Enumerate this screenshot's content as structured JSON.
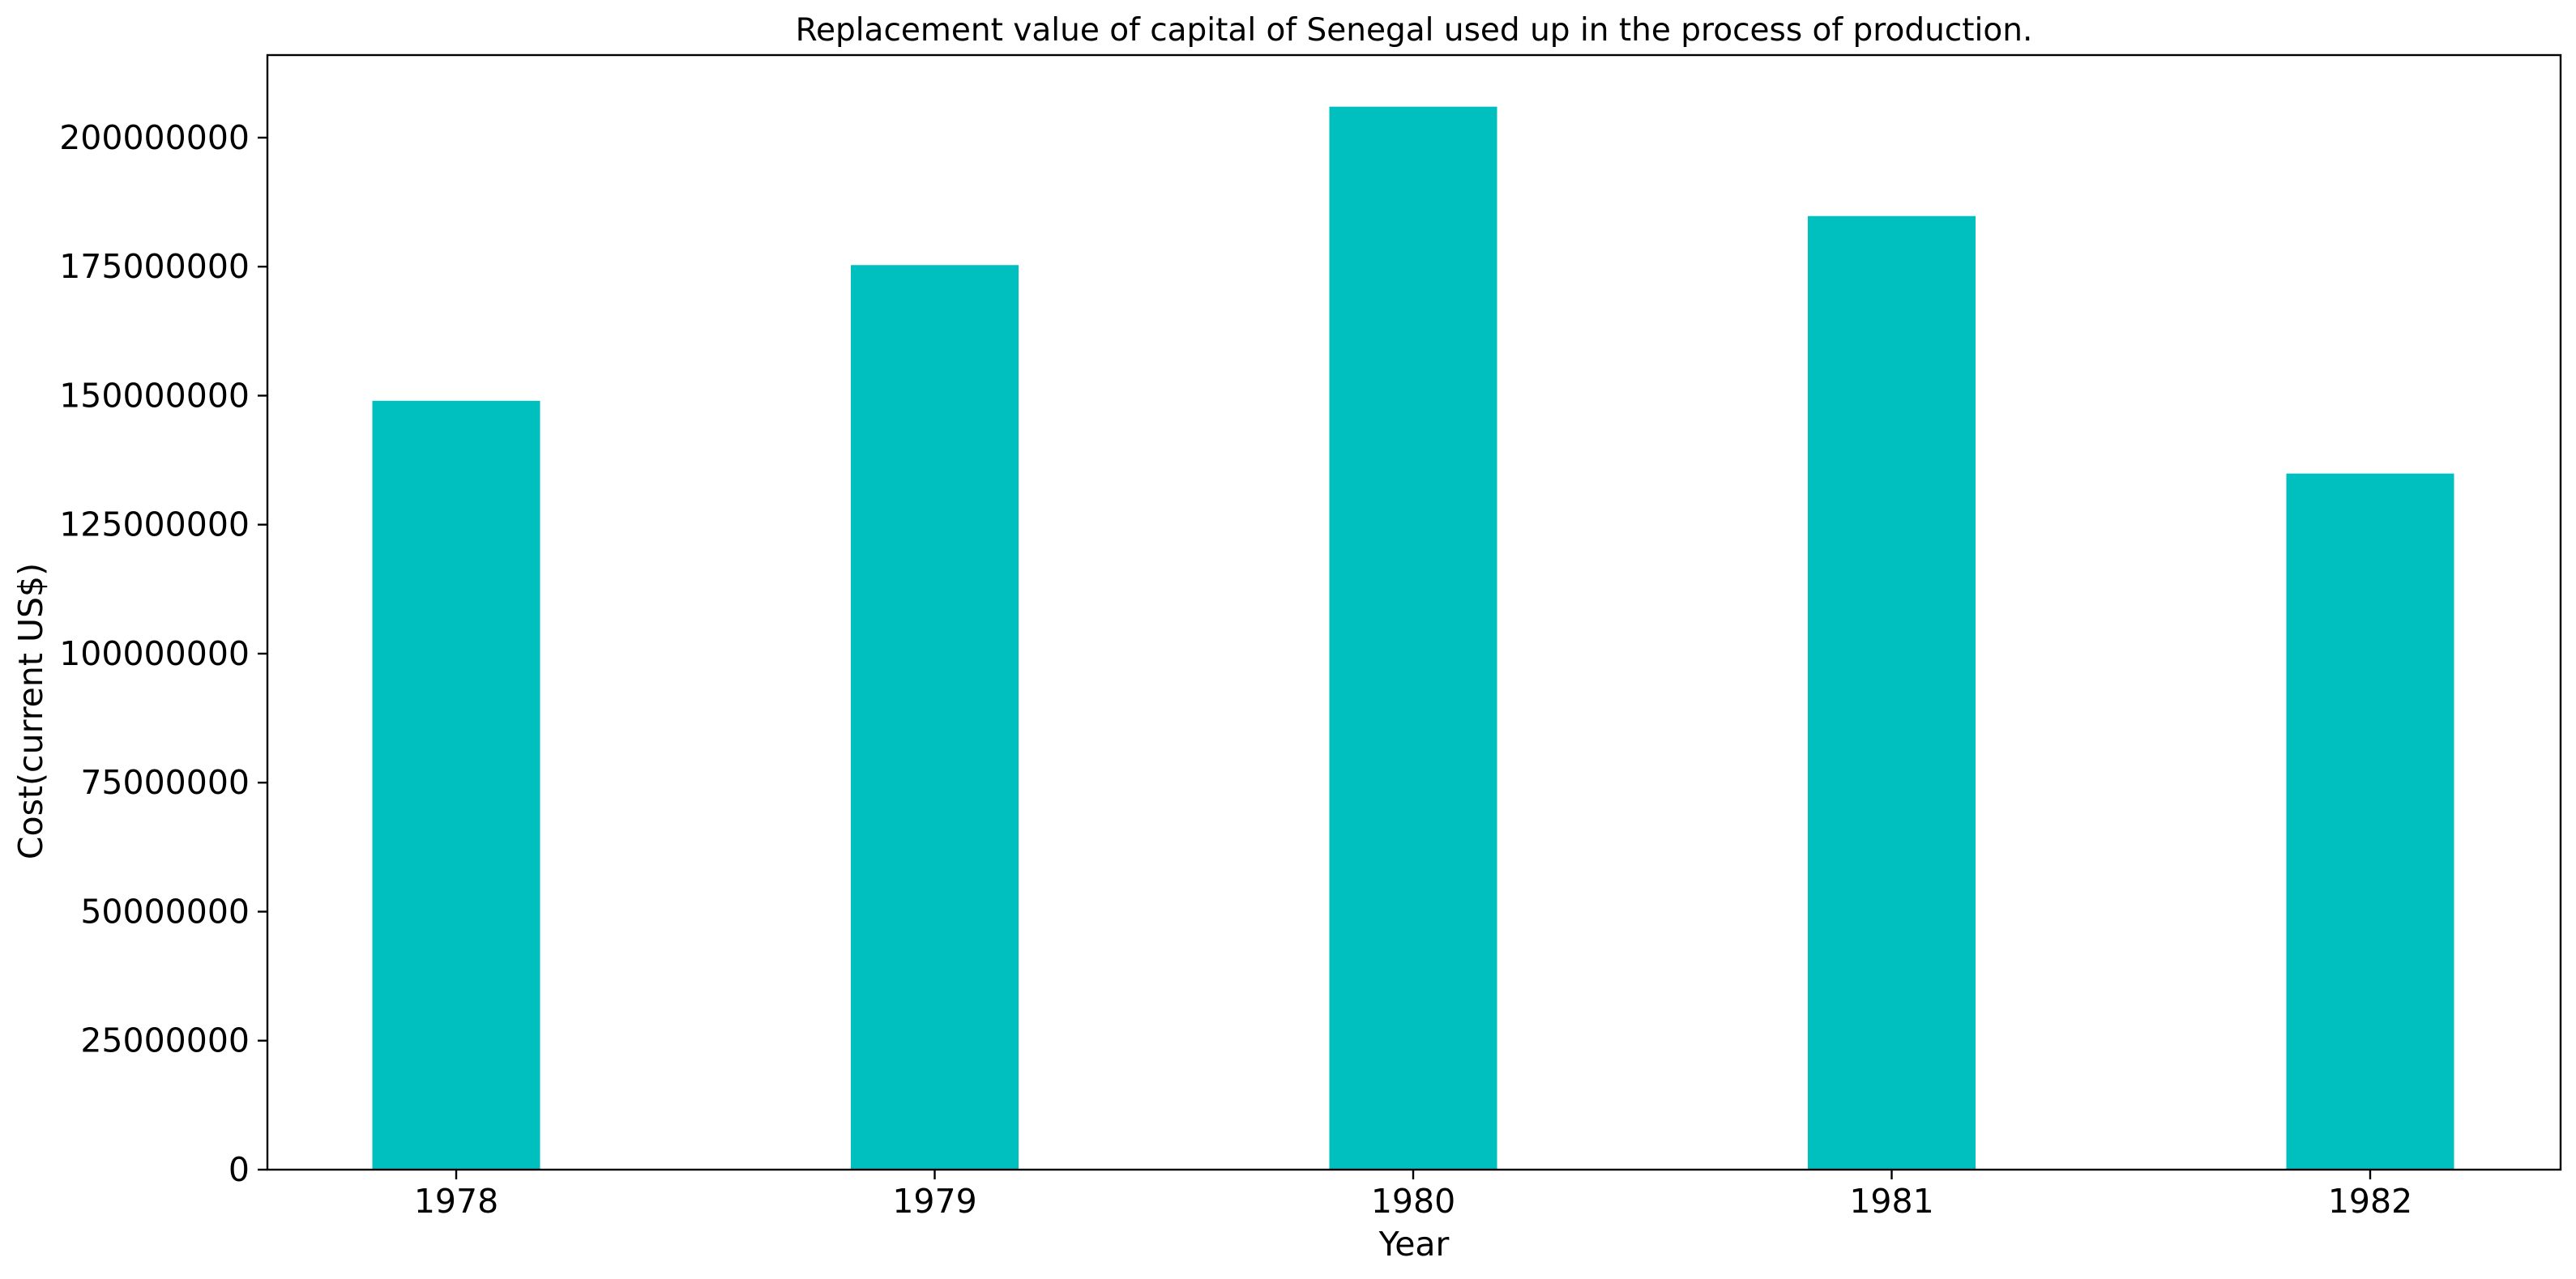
{
  "chart_data": {
    "type": "bar",
    "title": "Replacement value of capital of Senegal used up in the process of production.",
    "xlabel": "Year",
    "ylabel": "Cost(current US$)",
    "categories": [
      "1978",
      "1979",
      "1980",
      "1981",
      "1982"
    ],
    "values": [
      149000000,
      175300000,
      206000000,
      184800000,
      134900000
    ],
    "ylim": [
      0,
      216000000
    ],
    "yticks": [
      0,
      25000000,
      50000000,
      75000000,
      100000000,
      125000000,
      150000000,
      175000000,
      200000000
    ],
    "ytick_labels": [
      "0",
      "25000000",
      "50000000",
      "75000000",
      "100000000",
      "125000000",
      "150000000",
      "175000000",
      "200000000"
    ],
    "bar_color": "#00bfbf",
    "grid": false,
    "legend": "none"
  }
}
